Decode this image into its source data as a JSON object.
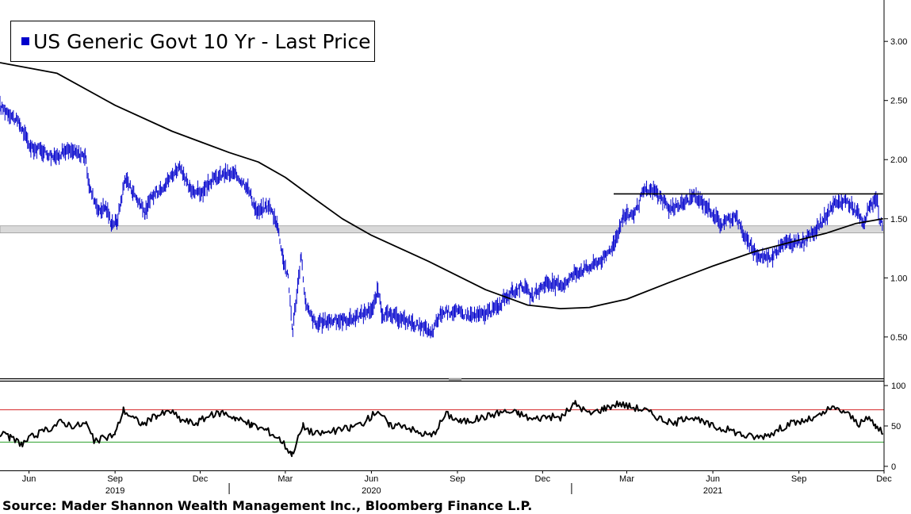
{
  "chart_data": [
    {
      "type": "line",
      "title": "",
      "legend": [
        {
          "label": "US Generic Govt 10 Yr - Last Price",
          "color": "#0000cc",
          "placement": "top-left"
        }
      ],
      "y_axis": {
        "position": "right",
        "range": [
          0.15,
          3.35
        ],
        "ticks": [
          "3.00",
          "2.50",
          "2.00",
          "1.50",
          "1.00",
          "0.50"
        ],
        "tick_values": [
          3.0,
          2.5,
          2.0,
          1.5,
          1.0,
          0.5
        ]
      },
      "x_axis": {
        "range": [
          "2019-05-01",
          "2021-12-01"
        ]
      },
      "series": [
        {
          "name": "US Generic Govt 10 Yr - Last Price",
          "color": "#0000cc",
          "style": "daily bars",
          "points": [
            [
              "2019-05-01",
              2.45
            ],
            [
              "2019-05-10",
              2.4
            ],
            [
              "2019-05-22",
              2.3
            ],
            [
              "2019-06-03",
              2.1
            ],
            [
              "2019-06-15",
              2.08
            ],
            [
              "2019-06-28",
              2.02
            ],
            [
              "2019-07-10",
              2.08
            ],
            [
              "2019-07-20",
              2.06
            ],
            [
              "2019-07-31",
              2.03
            ],
            [
              "2019-08-05",
              1.75
            ],
            [
              "2019-08-15",
              1.57
            ],
            [
              "2019-08-22",
              1.6
            ],
            [
              "2019-08-28",
              1.47
            ],
            [
              "2019-09-03",
              1.47
            ],
            [
              "2019-09-12",
              1.85
            ],
            [
              "2019-09-20",
              1.73
            ],
            [
              "2019-10-03",
              1.55
            ],
            [
              "2019-10-10",
              1.68
            ],
            [
              "2019-10-25",
              1.8
            ],
            [
              "2019-11-08",
              1.94
            ],
            [
              "2019-11-20",
              1.75
            ],
            [
              "2019-12-03",
              1.72
            ],
            [
              "2019-12-13",
              1.82
            ],
            [
              "2019-12-27",
              1.88
            ],
            [
              "2020-01-08",
              1.87
            ],
            [
              "2020-01-20",
              1.78
            ],
            [
              "2020-01-31",
              1.55
            ],
            [
              "2020-02-12",
              1.62
            ],
            [
              "2020-02-21",
              1.47
            ],
            [
              "2020-02-28",
              1.15
            ],
            [
              "2020-03-04",
              1.0
            ],
            [
              "2020-03-09",
              0.54
            ],
            [
              "2020-03-11",
              0.72
            ],
            [
              "2020-03-18",
              1.18
            ],
            [
              "2020-03-23",
              0.76
            ],
            [
              "2020-04-03",
              0.6
            ],
            [
              "2020-04-15",
              0.64
            ],
            [
              "2020-05-01",
              0.64
            ],
            [
              "2020-05-15",
              0.66
            ],
            [
              "2020-06-03",
              0.75
            ],
            [
              "2020-06-08",
              0.9
            ],
            [
              "2020-06-12",
              0.7
            ],
            [
              "2020-06-30",
              0.66
            ],
            [
              "2020-07-15",
              0.62
            ],
            [
              "2020-07-31",
              0.55
            ],
            [
              "2020-08-04",
              0.52
            ],
            [
              "2020-08-14",
              0.7
            ],
            [
              "2020-08-28",
              0.72
            ],
            [
              "2020-09-15",
              0.68
            ],
            [
              "2020-09-30",
              0.69
            ],
            [
              "2020-10-15",
              0.76
            ],
            [
              "2020-10-23",
              0.85
            ],
            [
              "2020-10-30",
              0.87
            ],
            [
              "2020-11-09",
              0.94
            ],
            [
              "2020-11-20",
              0.83
            ],
            [
              "2020-12-04",
              0.96
            ],
            [
              "2020-12-21",
              0.93
            ],
            [
              "2021-01-06",
              1.05
            ],
            [
              "2021-01-20",
              1.09
            ],
            [
              "2021-02-05",
              1.17
            ],
            [
              "2021-02-16",
              1.3
            ],
            [
              "2021-02-25",
              1.52
            ],
            [
              "2021-03-10",
              1.55
            ],
            [
              "2021-03-19",
              1.73
            ],
            [
              "2021-03-31",
              1.74
            ],
            [
              "2021-04-15",
              1.58
            ],
            [
              "2021-04-30",
              1.63
            ],
            [
              "2021-05-12",
              1.69
            ],
            [
              "2021-05-28",
              1.59
            ],
            [
              "2021-06-10",
              1.45
            ],
            [
              "2021-06-25",
              1.53
            ],
            [
              "2021-07-08",
              1.3
            ],
            [
              "2021-07-20",
              1.18
            ],
            [
              "2021-08-04",
              1.18
            ],
            [
              "2021-08-13",
              1.29
            ],
            [
              "2021-08-31",
              1.3
            ],
            [
              "2021-09-10",
              1.33
            ],
            [
              "2021-09-24",
              1.46
            ],
            [
              "2021-10-08",
              1.61
            ],
            [
              "2021-10-21",
              1.66
            ],
            [
              "2021-11-03",
              1.55
            ],
            [
              "2021-11-09",
              1.44
            ],
            [
              "2021-11-16",
              1.63
            ],
            [
              "2021-11-24",
              1.64
            ],
            [
              "2021-11-26",
              1.48
            ],
            [
              "2021-11-30",
              1.44
            ]
          ]
        },
        {
          "name": "",
          "color": "#000000",
          "style": "line",
          "points": [
            [
              "2019-05-01",
              2.82
            ],
            [
              "2019-07-01",
              2.73
            ],
            [
              "2019-09-01",
              2.46
            ],
            [
              "2019-11-01",
              2.24
            ],
            [
              "2020-01-01",
              2.06
            ],
            [
              "2020-02-01",
              1.98
            ],
            [
              "2020-03-01",
              1.85
            ],
            [
              "2020-04-01",
              1.67
            ],
            [
              "2020-05-01",
              1.5
            ],
            [
              "2020-06-01",
              1.36
            ],
            [
              "2020-08-01",
              1.14
            ],
            [
              "2020-10-01",
              0.9
            ],
            [
              "2020-11-15",
              0.77
            ],
            [
              "2020-12-20",
              0.74
            ],
            [
              "2021-01-20",
              0.75
            ],
            [
              "2021-03-01",
              0.82
            ],
            [
              "2021-04-15",
              0.96
            ],
            [
              "2021-06-01",
              1.1
            ],
            [
              "2021-07-15",
              1.22
            ],
            [
              "2021-09-01",
              1.32
            ],
            [
              "2021-10-01",
              1.38
            ],
            [
              "2021-11-01",
              1.46
            ],
            [
              "2021-11-30",
              1.5
            ]
          ]
        }
      ],
      "annotations": [
        {
          "type": "horizontal-band",
          "y_range": [
            1.38,
            1.44
          ],
          "color": "#d9d9d9"
        },
        {
          "type": "horizontal-line",
          "y": 1.71,
          "x_range": [
            "2021-02-15",
            "2021-11-30"
          ],
          "color": "#000000"
        }
      ]
    },
    {
      "type": "line",
      "title": "",
      "y_axis": {
        "position": "right",
        "range": [
          -5,
          105
        ],
        "ticks": [
          "100",
          "50",
          "0"
        ],
        "tick_values": [
          100,
          50,
          0
        ]
      },
      "x_axis": {
        "range": [
          "2019-05-01",
          "2021-12-01"
        ],
        "ticks": [
          "Jun",
          "Sep",
          "Dec",
          "Mar",
          "Jun",
          "Sep",
          "Dec",
          "Mar",
          "Jun",
          "Sep",
          "Dec"
        ],
        "tick_dates": [
          "2019-06-01",
          "2019-09-01",
          "2019-12-01",
          "2020-03-01",
          "2020-06-01",
          "2020-09-01",
          "2020-12-01",
          "2021-03-01",
          "2021-06-01",
          "2021-09-01",
          "2021-12-01"
        ],
        "years": [
          "2019",
          "2020",
          "2021"
        ],
        "year_dates": [
          "2019-09-01",
          "2020-06-01",
          "2021-06-01"
        ]
      },
      "series": [
        {
          "name": "",
          "color": "#000000",
          "points": [
            [
              "2019-05-01",
              40
            ],
            [
              "2019-05-12",
              35
            ],
            [
              "2019-05-25",
              28
            ],
            [
              "2019-06-05",
              37
            ],
            [
              "2019-06-20",
              45
            ],
            [
              "2019-07-05",
              55
            ],
            [
              "2019-07-20",
              50
            ],
            [
              "2019-08-01",
              53
            ],
            [
              "2019-08-10",
              30
            ],
            [
              "2019-08-20",
              35
            ],
            [
              "2019-09-01",
              40
            ],
            [
              "2019-09-10",
              70
            ],
            [
              "2019-09-20",
              60
            ],
            [
              "2019-10-01",
              52
            ],
            [
              "2019-10-15",
              63
            ],
            [
              "2019-10-31",
              68
            ],
            [
              "2019-11-10",
              58
            ],
            [
              "2019-11-25",
              53
            ],
            [
              "2019-12-10",
              62
            ],
            [
              "2019-12-25",
              67
            ],
            [
              "2020-01-08",
              60
            ],
            [
              "2020-01-25",
              51
            ],
            [
              "2020-02-10",
              45
            ],
            [
              "2020-02-25",
              33
            ],
            [
              "2020-03-08",
              15
            ],
            [
              "2020-03-20",
              50
            ],
            [
              "2020-04-01",
              40
            ],
            [
              "2020-04-20",
              43
            ],
            [
              "2020-05-10",
              48
            ],
            [
              "2020-05-25",
              55
            ],
            [
              "2020-06-08",
              70
            ],
            [
              "2020-06-20",
              50
            ],
            [
              "2020-07-05",
              52
            ],
            [
              "2020-07-20",
              42
            ],
            [
              "2020-08-05",
              38
            ],
            [
              "2020-08-20",
              65
            ],
            [
              "2020-09-05",
              55
            ],
            [
              "2020-09-20",
              58
            ],
            [
              "2020-10-05",
              63
            ],
            [
              "2020-10-20",
              68
            ],
            [
              "2020-11-05",
              66
            ],
            [
              "2020-11-20",
              58
            ],
            [
              "2020-12-05",
              62
            ],
            [
              "2020-12-20",
              60
            ],
            [
              "2021-01-05",
              78
            ],
            [
              "2021-01-20",
              65
            ],
            [
              "2021-02-05",
              72
            ],
            [
              "2021-02-20",
              78
            ],
            [
              "2021-03-05",
              74
            ],
            [
              "2021-03-20",
              70
            ],
            [
              "2021-04-05",
              60
            ],
            [
              "2021-04-20",
              52
            ],
            [
              "2021-05-05",
              63
            ],
            [
              "2021-05-20",
              55
            ],
            [
              "2021-06-05",
              48
            ],
            [
              "2021-06-20",
              45
            ],
            [
              "2021-07-05",
              38
            ],
            [
              "2021-07-20",
              36
            ],
            [
              "2021-08-05",
              42
            ],
            [
              "2021-08-20",
              52
            ],
            [
              "2021-09-05",
              56
            ],
            [
              "2021-09-20",
              60
            ],
            [
              "2021-10-05",
              72
            ],
            [
              "2021-10-20",
              68
            ],
            [
              "2021-11-05",
              52
            ],
            [
              "2021-11-15",
              60
            ],
            [
              "2021-11-22",
              50
            ],
            [
              "2021-11-30",
              40
            ]
          ]
        }
      ],
      "reference_lines": [
        {
          "y": 70,
          "color": "#d62728"
        },
        {
          "y": 30,
          "color": "#2ca02c"
        }
      ]
    }
  ],
  "source": "Source: Mader Shannon Wealth Management Inc., Bloomberg Finance L.P."
}
